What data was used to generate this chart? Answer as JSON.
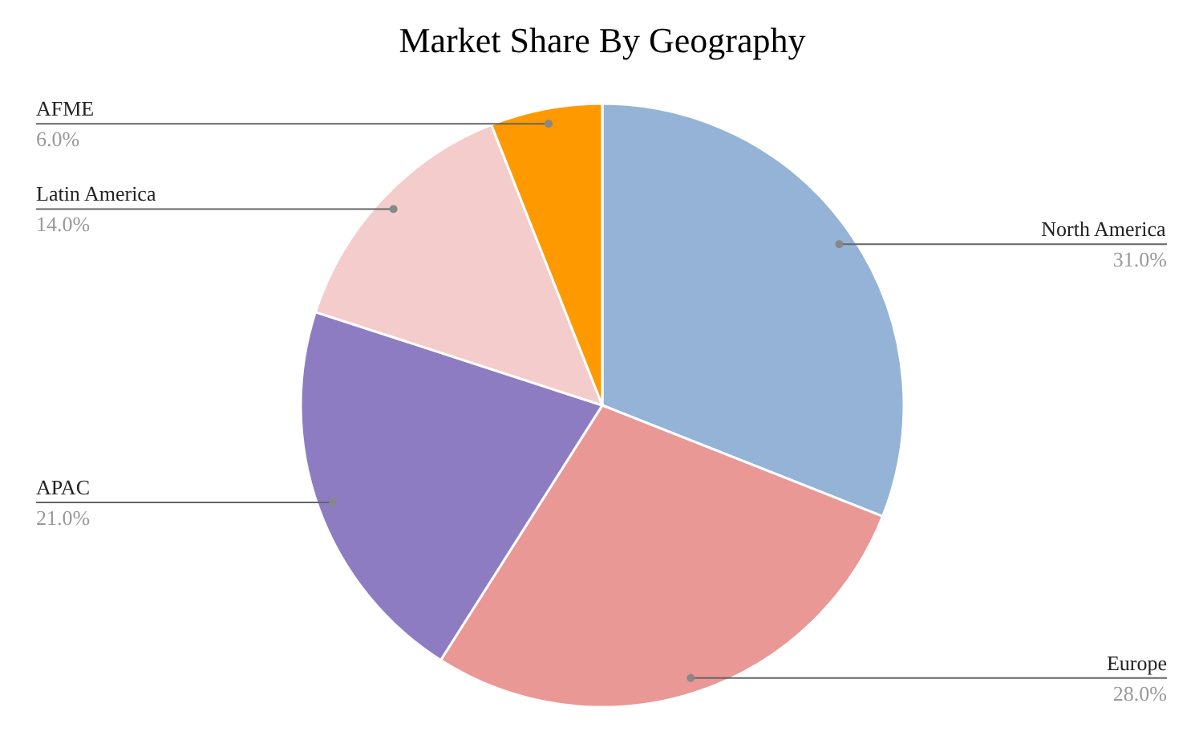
{
  "chart_data": {
    "type": "pie",
    "title": "Market Share By Geography",
    "categories": [
      "North America",
      "Europe",
      "APAC",
      "Latin America",
      "AFME"
    ],
    "values": [
      31,
      28,
      21,
      14,
      6
    ],
    "value_labels": [
      "31.0%",
      "28.0%",
      "21.0%",
      "14.0%",
      "6.0%"
    ],
    "colors": [
      "#95b3d7",
      "#e99896",
      "#8e7cc3",
      "#f4cccc",
      "#ff9900"
    ]
  }
}
